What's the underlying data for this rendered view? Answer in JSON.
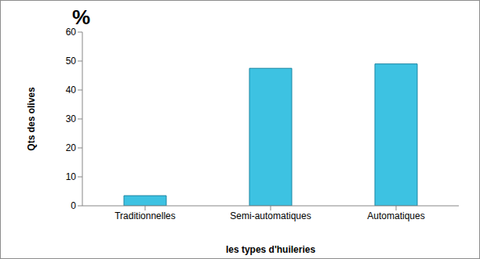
{
  "chart_data": {
    "type": "bar",
    "annotation": "%",
    "x_label": "les types d'huileries",
    "y_label": "Qts des olives",
    "categories": [
      "Traditionnelles",
      "Semi-automatiques",
      "Automatiques"
    ],
    "values": [
      3.5,
      47.5,
      49
    ],
    "color": "#3dc2e2",
    "ylim": [
      0,
      60
    ],
    "yticks": [
      0,
      10,
      20,
      30,
      40,
      50,
      60
    ],
    "grid": false
  }
}
